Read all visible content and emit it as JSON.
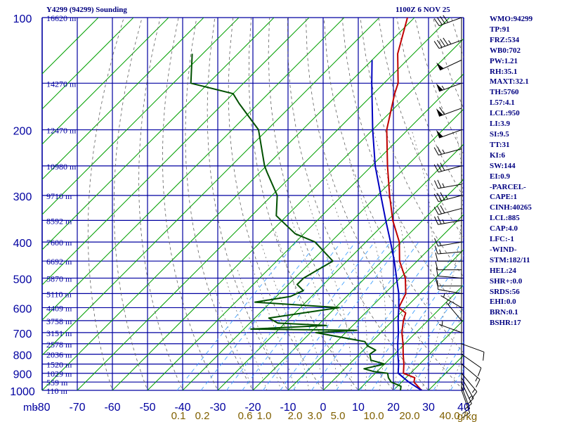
{
  "header": {
    "station": "Y4299 (94299) Sounding",
    "time": "1100Z  6 NOV 25"
  },
  "indices": [
    "WMO:94299",
    "TP:91",
    "FRZ:534",
    "WB0:702",
    "PW:1.21",
    "RH:35.1",
    "MAXT:32.1",
    "TH:5760",
    "L57:4.1",
    "LCL:950",
    "LI:3.9",
    "SI:9.5",
    "TT:31",
    "KI:6",
    "SW:144",
    "EI:0.9",
    "-PARCEL-",
    "CAPE:1",
    "CINH:40265",
    "LCL:885",
    "CAP:4.0",
    "LFC:-1",
    "-WIND-",
    "STM:182/11",
    "HEL:24",
    "SHR+:0.0",
    "SRDS:56",
    "EHI:0.0",
    "BRN:0.1",
    "BSHR:17"
  ],
  "colors": {
    "grid": "#0000a0",
    "isotherm": "#00a000",
    "mixing": "#40a0ff",
    "adiabat": "#606060",
    "temperature": "#c00000",
    "dewpoint": "#005000",
    "parcel": "#0000c0",
    "barb": "#000000",
    "text": "#000080"
  },
  "chart_data": {
    "type": "skew-t log-p sounding",
    "title": "Y4299 (94299) Sounding 1100Z 6 NOV 25",
    "ylabel": "mb",
    "xlabel": "°C",
    "xlim": [
      -80,
      40
    ],
    "ylim": [
      1000,
      100
    ],
    "pressure_ticks": [
      100,
      200,
      300,
      400,
      500,
      600,
      700,
      800,
      900,
      1000
    ],
    "pressure_tick_labels": [
      "100",
      "200",
      "300",
      "400",
      "500",
      "600",
      "700",
      "800",
      "900",
      "1000"
    ],
    "temperature_ticks": [
      -80,
      -70,
      -60,
      -50,
      -40,
      -30,
      -20,
      -10,
      0,
      10,
      20,
      30,
      40
    ],
    "temperature_tick_labels": [
      "-80",
      "-70",
      "-60",
      "-50",
      "-40",
      "-30",
      "-20",
      "-10",
      "0",
      "10",
      "20",
      "30",
      "40"
    ],
    "mixing_ratio_labels": [
      "0.1",
      "0.2",
      "0.6",
      "1.0",
      "2.0",
      "3.0",
      "5.0",
      "10.0",
      "20.0",
      "40.0"
    ],
    "mixing_ratio_unit": "g/kg",
    "height_labels": [
      {
        "p": 100,
        "text": "16620 m"
      },
      {
        "p": 150,
        "text": "14270 m"
      },
      {
        "p": 200,
        "text": "12470 m"
      },
      {
        "p": 250,
        "text": "10980 m"
      },
      {
        "p": 300,
        "text": "9710 m"
      },
      {
        "p": 350,
        "text": "8592 m"
      },
      {
        "p": 400,
        "text": "7600 m"
      },
      {
        "p": 450,
        "text": "6692 m"
      },
      {
        "p": 500,
        "text": "5870 m"
      },
      {
        "p": 550,
        "text": "5110 m"
      },
      {
        "p": 600,
        "text": "4409 m"
      },
      {
        "p": 650,
        "text": "3758 m"
      },
      {
        "p": 700,
        "text": "3151 m"
      },
      {
        "p": 750,
        "text": "2578 m"
      },
      {
        "p": 800,
        "text": "2036 m"
      },
      {
        "p": 850,
        "text": "1520 m"
      },
      {
        "p": 900,
        "text": "1029 m"
      },
      {
        "p": 950,
        "text": "559 m"
      },
      {
        "p": 1000,
        "text": "110 m"
      }
    ],
    "series": [
      {
        "name": "temperature",
        "points": [
          [
            1000,
            28.0
          ],
          [
            950,
            23.5
          ],
          [
            925,
            22.5
          ],
          [
            900,
            18.0
          ],
          [
            850,
            15.5
          ],
          [
            800,
            12.5
          ],
          [
            750,
            9.5
          ],
          [
            700,
            6.0
          ],
          [
            650,
            3.0
          ],
          [
            620,
            1.5
          ],
          [
            600,
            -2.0
          ],
          [
            550,
            -4.0
          ],
          [
            500,
            -8.5
          ],
          [
            450,
            -15.0
          ],
          [
            400,
            -20.5
          ],
          [
            350,
            -28.5
          ],
          [
            300,
            -36.5
          ],
          [
            250,
            -45.5
          ],
          [
            200,
            -56.0
          ],
          [
            160,
            -64.0
          ],
          [
            150,
            -66.0
          ],
          [
            125,
            -74.5
          ],
          [
            100,
            -82.0
          ]
        ]
      },
      {
        "name": "dewpoint",
        "points": [
          [
            1000,
            22.0
          ],
          [
            975,
            21.0
          ],
          [
            950,
            17.0
          ],
          [
            925,
            15.0
          ],
          [
            900,
            13.5
          ],
          [
            890,
            9.0
          ],
          [
            875,
            5.5
          ],
          [
            850,
            10.0
          ],
          [
            830,
            5.0
          ],
          [
            800,
            3.0
          ],
          [
            780,
            3.5
          ],
          [
            760,
            0.0
          ],
          [
            740,
            -2.0
          ],
          [
            700,
            -18.5
          ],
          [
            690,
            -7.5
          ],
          [
            685,
            -38.0
          ],
          [
            670,
            -17.5
          ],
          [
            660,
            -32.0
          ],
          [
            640,
            -36.0
          ],
          [
            600,
            -19.0
          ],
          [
            580,
            -44.5
          ],
          [
            560,
            -36.0
          ],
          [
            540,
            -34.0
          ],
          [
            520,
            -37.5
          ],
          [
            500,
            -37.5
          ],
          [
            450,
            -34.0
          ],
          [
            400,
            -44.5
          ],
          [
            380,
            -52.5
          ],
          [
            340,
            -63.0
          ],
          [
            300,
            -68.5
          ],
          [
            260,
            -78.0
          ],
          [
            250,
            -80.5
          ],
          [
            200,
            -92.5
          ],
          [
            170,
            -105.5
          ],
          [
            160,
            -110.0
          ],
          [
            150,
            -125.0
          ],
          [
            125,
            -133.0
          ]
        ]
      },
      {
        "name": "parcel",
        "points": [
          [
            1000,
            28.0
          ],
          [
            950,
            22.0
          ],
          [
            900,
            16.5
          ],
          [
            850,
            14.0
          ],
          [
            800,
            11.0
          ],
          [
            750,
            8.0
          ],
          [
            700,
            5.0
          ],
          [
            650,
            1.5
          ],
          [
            600,
            -2.0
          ],
          [
            550,
            -6.0
          ],
          [
            500,
            -11.0
          ],
          [
            450,
            -16.5
          ],
          [
            400,
            -23.0
          ],
          [
            350,
            -30.5
          ],
          [
            300,
            -39.0
          ],
          [
            250,
            -49.0
          ],
          [
            200,
            -60.0
          ],
          [
            150,
            -73.5
          ],
          [
            130,
            -80.0
          ]
        ]
      }
    ],
    "wind_barbs": [
      {
        "p": 100,
        "dir": 250,
        "spd": 40
      },
      {
        "p": 115,
        "dir": 250,
        "spd": 45
      },
      {
        "p": 130,
        "dir": 245,
        "spd": 50
      },
      {
        "p": 150,
        "dir": 250,
        "spd": 55
      },
      {
        "p": 175,
        "dir": 250,
        "spd": 60
      },
      {
        "p": 200,
        "dir": 250,
        "spd": 50
      },
      {
        "p": 225,
        "dir": 255,
        "spd": 25
      },
      {
        "p": 250,
        "dir": 255,
        "spd": 30
      },
      {
        "p": 280,
        "dir": 260,
        "spd": 25
      },
      {
        "p": 300,
        "dir": 255,
        "spd": 35
      },
      {
        "p": 325,
        "dir": 255,
        "spd": 30
      },
      {
        "p": 350,
        "dir": 260,
        "spd": 25
      },
      {
        "p": 400,
        "dir": 260,
        "spd": 15
      },
      {
        "p": 425,
        "dir": 265,
        "spd": 15
      },
      {
        "p": 450,
        "dir": 270,
        "spd": 10
      },
      {
        "p": 475,
        "dir": 270,
        "spd": 10
      },
      {
        "p": 500,
        "dir": 275,
        "spd": 10
      },
      {
        "p": 525,
        "dir": 270,
        "spd": 10
      },
      {
        "p": 550,
        "dir": 280,
        "spd": 10
      },
      {
        "p": 600,
        "dir": 300,
        "spd": 5
      },
      {
        "p": 650,
        "dir": 320,
        "spd": 5
      },
      {
        "p": 700,
        "dir": 290,
        "spd": 5
      },
      {
        "p": 750,
        "dir": 110,
        "spd": 10
      },
      {
        "p": 800,
        "dir": 125,
        "spd": 10
      },
      {
        "p": 850,
        "dir": 130,
        "spd": 15
      },
      {
        "p": 900,
        "dir": 140,
        "spd": 15
      },
      {
        "p": 925,
        "dir": 150,
        "spd": 15
      },
      {
        "p": 950,
        "dir": 155,
        "spd": 10
      },
      {
        "p": 975,
        "dir": 160,
        "spd": 10
      },
      {
        "p": 1000,
        "dir": 160,
        "spd": 10
      }
    ]
  }
}
